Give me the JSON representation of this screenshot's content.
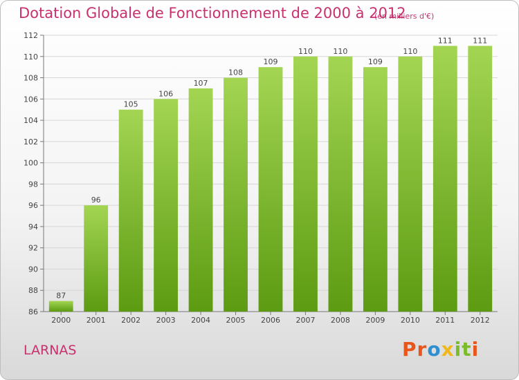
{
  "header": {
    "title": "Dotation Globale de Fonctionnement de 2000 à 2012",
    "unit_note": "(en milliers d'€)"
  },
  "footer": {
    "town": "LARNAS",
    "logo": [
      "P",
      "r",
      "o",
      "x",
      "i",
      "t",
      "i"
    ],
    "logo_colors": [
      "#e8561c",
      "#e8561c",
      "#2e90d0",
      "#f0b81a",
      "#7cbc2c",
      "#7cbc2c",
      "#e8561c"
    ]
  },
  "colors": {
    "accent": "#c8306e",
    "bar_top": "#a3d553",
    "bar_bottom": "#5c9b12"
  },
  "chart_data": {
    "type": "bar",
    "title": "Dotation Globale de Fonctionnement de 2000 à 2012",
    "subtitle": "(en milliers d'€)",
    "categories": [
      "2000",
      "2001",
      "2002",
      "2003",
      "2004",
      "2005",
      "2006",
      "2007",
      "2008",
      "2009",
      "2010",
      "2011",
      "2012"
    ],
    "values": [
      87,
      96,
      105,
      106,
      107,
      108,
      109,
      110,
      110,
      109,
      110,
      111,
      111
    ],
    "ylim": [
      86,
      112
    ],
    "yticks": [
      86,
      88,
      90,
      92,
      94,
      96,
      98,
      100,
      102,
      104,
      106,
      108,
      110,
      112
    ],
    "xlabel": "",
    "ylabel": "",
    "grid": true,
    "data_labels": true
  }
}
